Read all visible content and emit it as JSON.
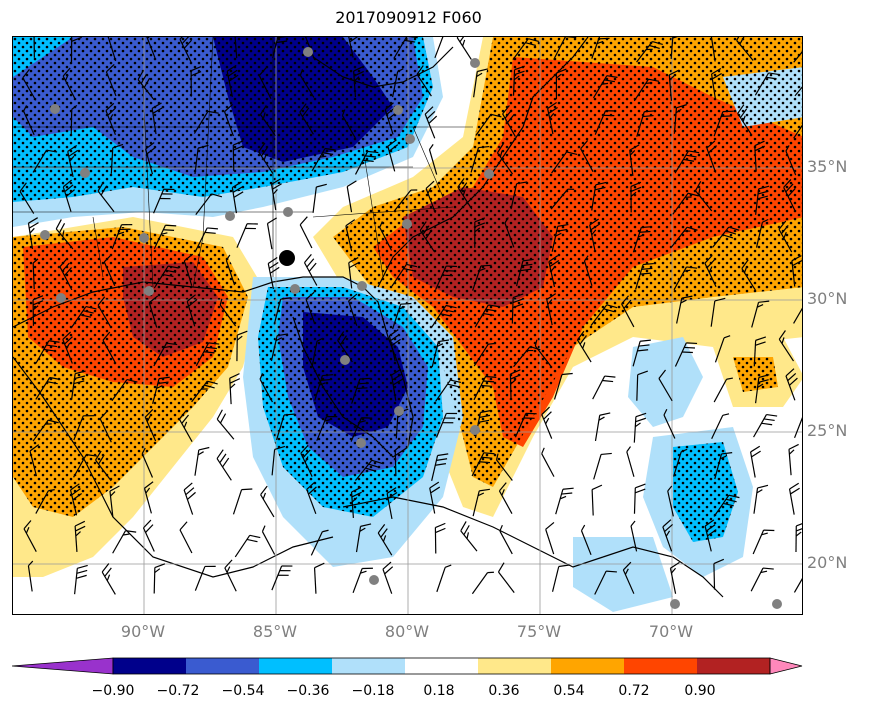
{
  "title": "2017090912 F060",
  "lat_labels": [
    "35°N",
    "30°N",
    "25°N",
    "20°N"
  ],
  "lon_labels": [
    "90°W",
    "85°W",
    "80°W",
    "75°W",
    "70°W"
  ],
  "colorbar": {
    "ticks": [
      "−0.90",
      "−0.72",
      "−0.54",
      "−0.36",
      "−0.18",
      "0.18",
      "0.36",
      "0.54",
      "0.72",
      "0.90"
    ],
    "colors": [
      "#9932cc",
      "#00008b",
      "#3a5bd0",
      "#00bfff",
      "#b0e0fa",
      "#ffffff",
      "#ffe88a",
      "#ffa500",
      "#ff4500",
      "#b22222",
      "#ff88bb"
    ]
  },
  "map": {
    "lat_range": [
      18,
      40
    ],
    "lon_range": [
      -95,
      -65
    ],
    "contour_colors": {
      "dark_blue": "#00008b",
      "blue": "#3a5bd0",
      "cyan": "#00bfff",
      "light_blue": "#b0e0fa",
      "yellow": "#ffe88a",
      "orange": "#ffa500",
      "red_orange": "#ff4500",
      "dark_red": "#b22222"
    },
    "station_marker": "gray-circle",
    "storm_marker": "black-circle"
  }
}
